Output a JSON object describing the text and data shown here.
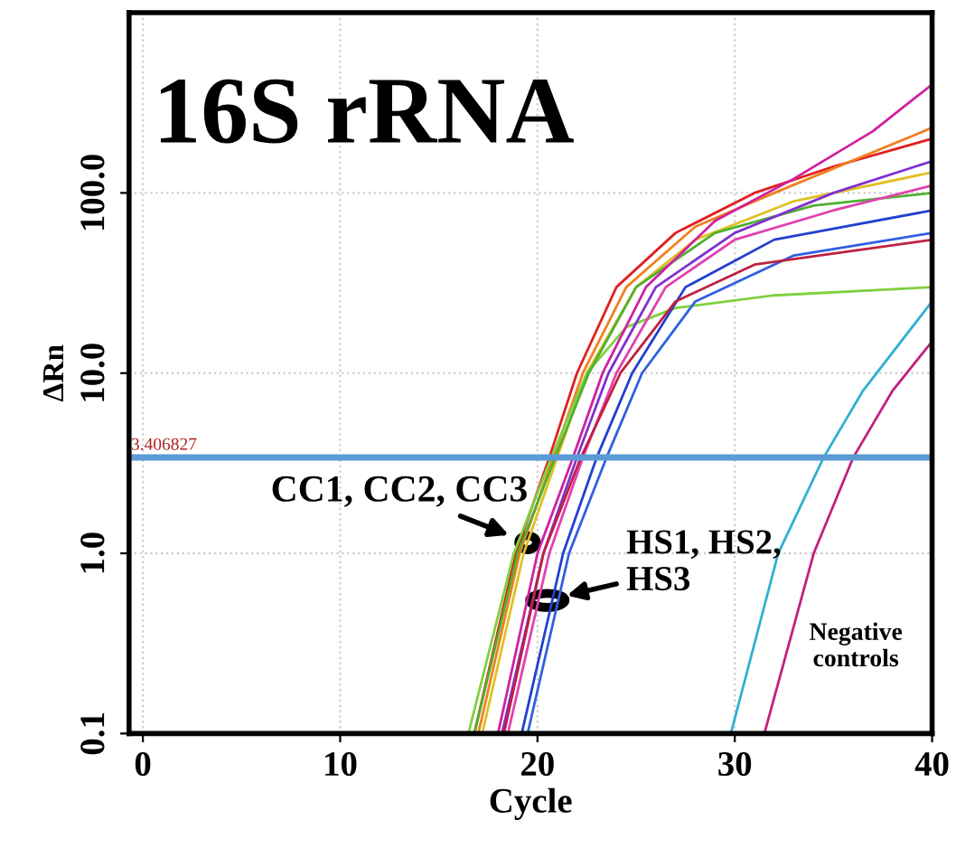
{
  "chart_data": {
    "type": "line",
    "title": "16S rRNA",
    "xlabel": "Cycle",
    "ylabel": "ΔRn",
    "log": "y",
    "xlim": [
      -0.7,
      40
    ],
    "xticks": [
      0,
      10,
      20,
      30,
      40
    ],
    "ylim": [
      0.1,
      1000
    ],
    "yticks": [
      0.1,
      {
        "value": 1,
        "label": "1.0"
      },
      {
        "value": 10,
        "label": "10.0"
      },
      {
        "value": 100,
        "label": "100.0"
      }
    ],
    "grid": true,
    "marker": "none",
    "line_style": "solid",
    "ref_lines": [
      {
        "axis": "y",
        "value": 3.406827,
        "label": "3.406827",
        "color": "#5b9bd5"
      }
    ],
    "annotations": [
      {
        "text": "CC1, CC2, CC3",
        "x": 19.5,
        "y": 1.15
      },
      {
        "text": "HS1, HS2,\nHS3",
        "x": 20.5,
        "y": 0.55
      },
      "Negative\ncontrols"
    ],
    "series": [
      {
        "color": "#e02020",
        "x": [
          16.8,
          18.9,
          20.6,
          22,
          24,
          27,
          31,
          35,
          40
        ],
        "values": [
          0.1,
          1,
          3.4,
          10,
          30,
          60,
          100,
          140,
          200
        ]
      },
      {
        "color": "#f08020",
        "x": [
          17,
          19.1,
          20.8,
          22.3,
          24.5,
          28,
          32,
          40
        ],
        "values": [
          0.1,
          1,
          3.4,
          10,
          30,
          65,
          100,
          230
        ]
      },
      {
        "color": "#e0c020",
        "x": [
          17.2,
          19.3,
          21,
          22.5,
          25,
          28,
          33,
          40
        ],
        "values": [
          0.1,
          1,
          3.4,
          10,
          30,
          55,
          90,
          130
        ]
      },
      {
        "color": "#80d040",
        "x": [
          16.5,
          18.8,
          20.7,
          22.5,
          24.5,
          27,
          32,
          40
        ],
        "values": [
          0.1,
          1,
          3.4,
          10,
          18,
          23,
          27,
          30
        ]
      },
      {
        "color": "#50b030",
        "x": [
          16.8,
          19,
          20.9,
          22.6,
          25,
          29,
          34,
          40
        ],
        "values": [
          0.1,
          1,
          3.4,
          10,
          30,
          60,
          85,
          100
        ]
      },
      {
        "color": "#d020a0",
        "x": [
          18,
          20,
          21.8,
          23.3,
          25.5,
          29,
          33,
          37,
          40
        ],
        "values": [
          0.1,
          1,
          3.4,
          10,
          30,
          70,
          120,
          220,
          400
        ]
      },
      {
        "color": "#8030d0",
        "x": [
          18.2,
          20.3,
          22,
          23.6,
          26,
          30,
          35,
          40
        ],
        "values": [
          0.1,
          1,
          3.4,
          10,
          30,
          60,
          100,
          150
        ]
      },
      {
        "color": "#e040b0",
        "x": [
          18.5,
          20.6,
          22.3,
          24,
          26.5,
          30,
          35,
          40
        ],
        "values": [
          0.1,
          1,
          3.4,
          10,
          30,
          55,
          80,
          110
        ]
      },
      {
        "color": "#2040d0",
        "x": [
          19.2,
          21.3,
          23,
          24.8,
          27.5,
          32,
          40
        ],
        "values": [
          0.1,
          1,
          3.4,
          10,
          30,
          55,
          80
        ]
      },
      {
        "color": "#3060e0",
        "x": [
          19.5,
          21.6,
          23.5,
          25.3,
          28,
          33,
          40
        ],
        "values": [
          0.1,
          1,
          3.4,
          10,
          25,
          45,
          60
        ]
      },
      {
        "color": "#c02040",
        "x": [
          18.3,
          20.3,
          22.2,
          24.2,
          27,
          31,
          40
        ],
        "values": [
          0.1,
          1,
          3.4,
          10,
          25,
          40,
          55
        ]
      },
      {
        "color": "#30b0d0",
        "x": [
          29.8,
          32.2,
          34.5,
          36.5,
          40
        ],
        "values": [
          0.1,
          1,
          3.4,
          8,
          25
        ]
      },
      {
        "color": "#c02080",
        "x": [
          31.5,
          34,
          36,
          38,
          40
        ],
        "values": [
          0.1,
          1,
          3.4,
          8,
          15
        ]
      }
    ]
  }
}
